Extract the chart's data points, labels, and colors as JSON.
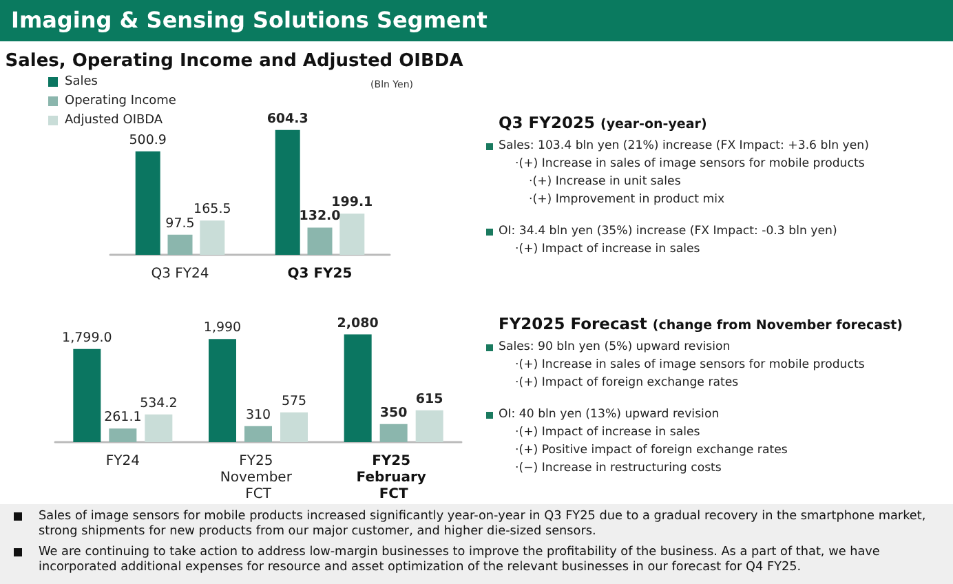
{
  "chart_data": [
    {
      "type": "other",
      "title": "Imaging & Sensing Solutions Segment"
    },
    {
      "type": "bar",
      "title": "Sales, Operating Income and Adjusted OIBDA",
      "annotations": [
        "(Bln Yen)"
      ],
      "categories": [
        "Q3 FY24",
        "Q3 FY25"
      ],
      "legend": "top left",
      "series": [
        {
          "name": "Sales",
          "color": "#0b7661",
          "values": [
            500.9,
            604.3
          ],
          "value_labels": [
            "500.9",
            "604.3"
          ]
        },
        {
          "name": "Operating Income",
          "color": "#8bb6ad",
          "values": [
            97.5,
            132.0
          ],
          "value_labels": [
            "97.5",
            "132.0"
          ]
        },
        {
          "name": "Adjusted OIBDA",
          "color": "#c9ddd8",
          "values": [
            165.5,
            199.1
          ],
          "value_labels": [
            "165.5",
            "199.1"
          ]
        }
      ]
    },
    {
      "type": "bar",
      "categories": [
        "FY24",
        "FY25 November FCT",
        "FY25 February FCT"
      ],
      "series": [
        {
          "color": "#0b7661",
          "values": [
            1799.0,
            1990,
            2080
          ],
          "value_labels": [
            "1,799.0",
            "1,990",
            "2,080"
          ]
        },
        {
          "color": "#8bb6ad",
          "values": [
            261.1,
            310,
            350
          ],
          "value_labels": [
            "261.1",
            "310",
            "350"
          ]
        },
        {
          "color": "#c9ddd8",
          "values": [
            534.2,
            575,
            615
          ],
          "value_labels": [
            "534.2",
            "575",
            "615"
          ]
        }
      ]
    },
    {
      "type": "other",
      "title": "Q3 FY2025",
      "subtitle": "(year-on-year)",
      "annotations": [
        "Sales: 103.4 bln yen (21%) increase (FX Impact: +3.6 bln yen)",
        "·(+) Increase in sales of image sensors for mobile products",
        "·(+) Increase in unit sales",
        "·(+) Improvement in product mix",
        "OI: 34.4 bln yen (35%) increase (FX Impact: -0.3 bln yen)",
        "·(+) Impact of increase in sales"
      ]
    },
    {
      "type": "other",
      "title": "FY2025 Forecast",
      "subtitle": "(change from November forecast)",
      "annotations": [
        "Sales: 90 bln yen (5%) upward revision",
        "·(+) Increase in sales of image sensors for mobile products",
        "·(+) Impact of foreign exchange rates",
        "OI: 40 bln yen (13%) upward revision",
        "·(+) Impact of increase in sales",
        "·(+) Positive impact of foreign exchange rates",
        "·(−) Increase in restructuring costs"
      ]
    },
    {
      "type": "other",
      "annotations": [
        "Sales of image sensors for mobile products increased significantly year-on-year in Q3 FY25 due to a gradual recovery in the smartphone market, strong shipments for new products from our major customer, and higher die-sized sensors.",
        "We are continuing to take action to address low-margin businesses to improve the profitability of the business. As a part of that, we have incorporated additional expenses for resource and asset optimization of the relevant businesses in our forecast for Q4 FY25."
      ]
    }
  ]
}
